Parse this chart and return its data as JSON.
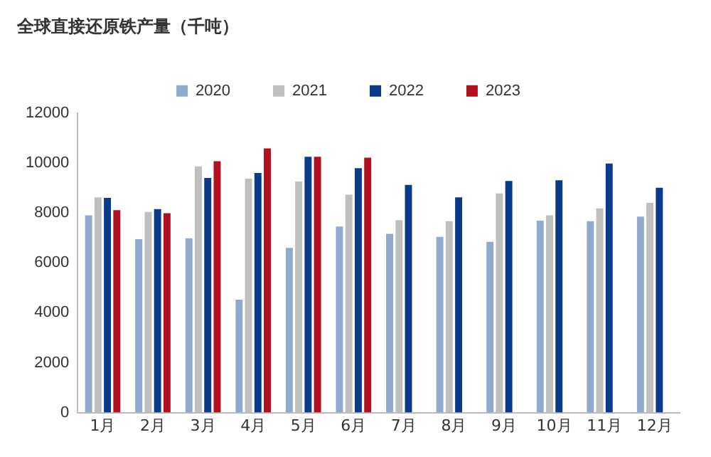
{
  "chart_data": {
    "type": "bar",
    "title": "全球直接还原铁产量（千吨）",
    "categories": [
      "1月",
      "2月",
      "3月",
      "4月",
      "5月",
      "6月",
      "7月",
      "8月",
      "9月",
      "10月",
      "11月",
      "12月"
    ],
    "series": [
      {
        "name": "2020",
        "color": "#8faacc",
        "values": [
          7900,
          6950,
          6980,
          4520,
          6600,
          7450,
          7160,
          7040,
          6840,
          7690,
          7670,
          7850
        ]
      },
      {
        "name": "2021",
        "color": "#c0bfc0",
        "values": [
          8620,
          8040,
          9860,
          9370,
          9260,
          8730,
          7710,
          7670,
          8780,
          7900,
          8180,
          8400
        ]
      },
      {
        "name": "2022",
        "color": "#0a3a8a",
        "values": [
          8600,
          8150,
          9400,
          9600,
          10250,
          9790,
          9120,
          8620,
          9280,
          9310,
          9980,
          9010
        ]
      },
      {
        "name": "2023",
        "color": "#b01020",
        "values": [
          8110,
          7990,
          10070,
          10580,
          10250,
          10210,
          null,
          null,
          null,
          null,
          null,
          null
        ]
      }
    ],
    "ylim": [
      0,
      12000
    ],
    "yticks": [
      0,
      2000,
      4000,
      6000,
      8000,
      10000,
      12000
    ],
    "grid": false,
    "legend": "top"
  }
}
